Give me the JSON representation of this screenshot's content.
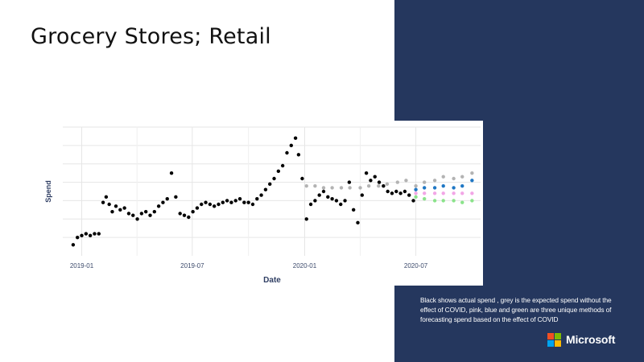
{
  "slide": {
    "title": "Grocery Stores; Retail",
    "caption": "Black shows actual spend , grey is the expected spend without the effect of COVID, pink, blue and green are three unique methods of forecasting spend based on the effect of COVID",
    "brand": "Microsoft",
    "panel_color": "#25375e"
  },
  "logo_colors": [
    "#f25022",
    "#7fba00",
    "#00a4ef",
    "#ffb900"
  ],
  "chart_data": {
    "type": "scatter",
    "xlabel": "Date",
    "ylabel": "Spend",
    "x_ticks": [
      "2019-01",
      "2019-07",
      "2020-01",
      "2020-07"
    ],
    "xlim": [
      "2018-12-01",
      "2020-10-15"
    ],
    "y_scale_unlabeled": true,
    "ylim": [
      0,
      70
    ],
    "grid": true,
    "series": [
      {
        "color": "#000000",
        "points": [
          [
            "2018-12-18",
            6
          ],
          [
            "2018-12-25",
            10
          ],
          [
            "2019-01-01",
            11
          ],
          [
            "2019-01-08",
            12
          ],
          [
            "2019-01-15",
            11
          ],
          [
            "2019-01-22",
            12
          ],
          [
            "2019-01-29",
            12
          ],
          [
            "2019-02-05",
            29
          ],
          [
            "2019-02-10",
            32
          ],
          [
            "2019-02-15",
            28
          ],
          [
            "2019-02-20",
            24
          ],
          [
            "2019-02-26",
            27
          ],
          [
            "2019-03-05",
            25
          ],
          [
            "2019-03-12",
            26
          ],
          [
            "2019-03-19",
            23
          ],
          [
            "2019-03-26",
            22
          ],
          [
            "2019-04-02",
            20
          ],
          [
            "2019-04-09",
            23
          ],
          [
            "2019-04-16",
            24
          ],
          [
            "2019-04-23",
            22
          ],
          [
            "2019-04-30",
            24
          ],
          [
            "2019-05-07",
            27
          ],
          [
            "2019-05-14",
            29
          ],
          [
            "2019-05-21",
            31
          ],
          [
            "2019-05-28",
            45
          ],
          [
            "2019-06-04",
            32
          ],
          [
            "2019-06-11",
            23
          ],
          [
            "2019-06-18",
            22
          ],
          [
            "2019-06-25",
            21
          ],
          [
            "2019-07-02",
            24
          ],
          [
            "2019-07-09",
            26
          ],
          [
            "2019-07-16",
            28
          ],
          [
            "2019-07-23",
            29
          ],
          [
            "2019-07-30",
            28
          ],
          [
            "2019-08-06",
            27
          ],
          [
            "2019-08-13",
            28
          ],
          [
            "2019-08-20",
            29
          ],
          [
            "2019-08-27",
            30
          ],
          [
            "2019-09-03",
            29
          ],
          [
            "2019-09-10",
            30
          ],
          [
            "2019-09-17",
            31
          ],
          [
            "2019-09-24",
            29
          ],
          [
            "2019-10-01",
            29
          ],
          [
            "2019-10-08",
            28
          ],
          [
            "2019-10-15",
            31
          ],
          [
            "2019-10-22",
            33
          ],
          [
            "2019-10-29",
            36
          ],
          [
            "2019-11-05",
            39
          ],
          [
            "2019-11-12",
            42
          ],
          [
            "2019-11-19",
            46
          ],
          [
            "2019-11-26",
            49
          ],
          [
            "2019-12-03",
            56
          ],
          [
            "2019-12-10",
            60
          ],
          [
            "2019-12-17",
            64
          ],
          [
            "2019-12-22",
            55
          ],
          [
            "2019-12-28",
            42
          ],
          [
            "2020-01-04",
            20
          ],
          [
            "2020-01-11",
            28
          ],
          [
            "2020-01-18",
            30
          ],
          [
            "2020-01-25",
            33
          ],
          [
            "2020-02-01",
            35
          ],
          [
            "2020-02-08",
            32
          ],
          [
            "2020-02-15",
            31
          ],
          [
            "2020-02-22",
            30
          ],
          [
            "2020-02-29",
            28
          ],
          [
            "2020-03-07",
            30
          ],
          [
            "2020-03-14",
            40
          ],
          [
            "2020-03-21",
            25
          ],
          [
            "2020-03-28",
            18
          ],
          [
            "2020-04-04",
            33
          ],
          [
            "2020-04-11",
            45
          ],
          [
            "2020-04-18",
            41
          ],
          [
            "2020-04-25",
            43
          ],
          [
            "2020-05-02",
            40
          ],
          [
            "2020-05-09",
            38
          ],
          [
            "2020-05-16",
            35
          ],
          [
            "2020-05-23",
            34
          ],
          [
            "2020-05-30",
            35
          ],
          [
            "2020-06-06",
            34
          ],
          [
            "2020-06-13",
            35
          ],
          [
            "2020-06-20",
            33
          ],
          [
            "2020-06-27",
            30
          ]
        ]
      },
      {
        "color": "#b3b3b3",
        "points": [
          [
            "2020-01-04",
            38
          ],
          [
            "2020-01-18",
            38
          ],
          [
            "2020-02-01",
            37
          ],
          [
            "2020-02-15",
            37
          ],
          [
            "2020-03-01",
            37
          ],
          [
            "2020-03-15",
            37
          ],
          [
            "2020-04-01",
            37
          ],
          [
            "2020-04-15",
            38
          ],
          [
            "2020-05-01",
            38
          ],
          [
            "2020-05-15",
            39
          ],
          [
            "2020-06-01",
            40
          ],
          [
            "2020-06-15",
            41
          ],
          [
            "2020-07-01",
            38
          ],
          [
            "2020-07-15",
            40
          ],
          [
            "2020-08-01",
            41
          ],
          [
            "2020-08-15",
            43
          ],
          [
            "2020-09-01",
            42
          ],
          [
            "2020-09-15",
            43
          ],
          [
            "2020-10-01",
            45
          ]
        ]
      },
      {
        "color": "#1f77c4",
        "points": [
          [
            "2020-07-01",
            36
          ],
          [
            "2020-07-15",
            37
          ],
          [
            "2020-08-01",
            37
          ],
          [
            "2020-08-15",
            38
          ],
          [
            "2020-09-01",
            37
          ],
          [
            "2020-09-15",
            38
          ],
          [
            "2020-10-01",
            41
          ]
        ]
      },
      {
        "color": "#f2a6e6",
        "points": [
          [
            "2020-07-01",
            34
          ],
          [
            "2020-07-15",
            34
          ],
          [
            "2020-08-01",
            34
          ],
          [
            "2020-08-15",
            34
          ],
          [
            "2020-09-01",
            34
          ],
          [
            "2020-09-15",
            34
          ],
          [
            "2020-10-01",
            34
          ]
        ]
      },
      {
        "color": "#8be38b",
        "points": [
          [
            "2020-07-01",
            32
          ],
          [
            "2020-07-15",
            31
          ],
          [
            "2020-08-01",
            30
          ],
          [
            "2020-08-15",
            30
          ],
          [
            "2020-09-01",
            30
          ],
          [
            "2020-09-15",
            29
          ],
          [
            "2020-10-01",
            30
          ]
        ]
      }
    ]
  }
}
